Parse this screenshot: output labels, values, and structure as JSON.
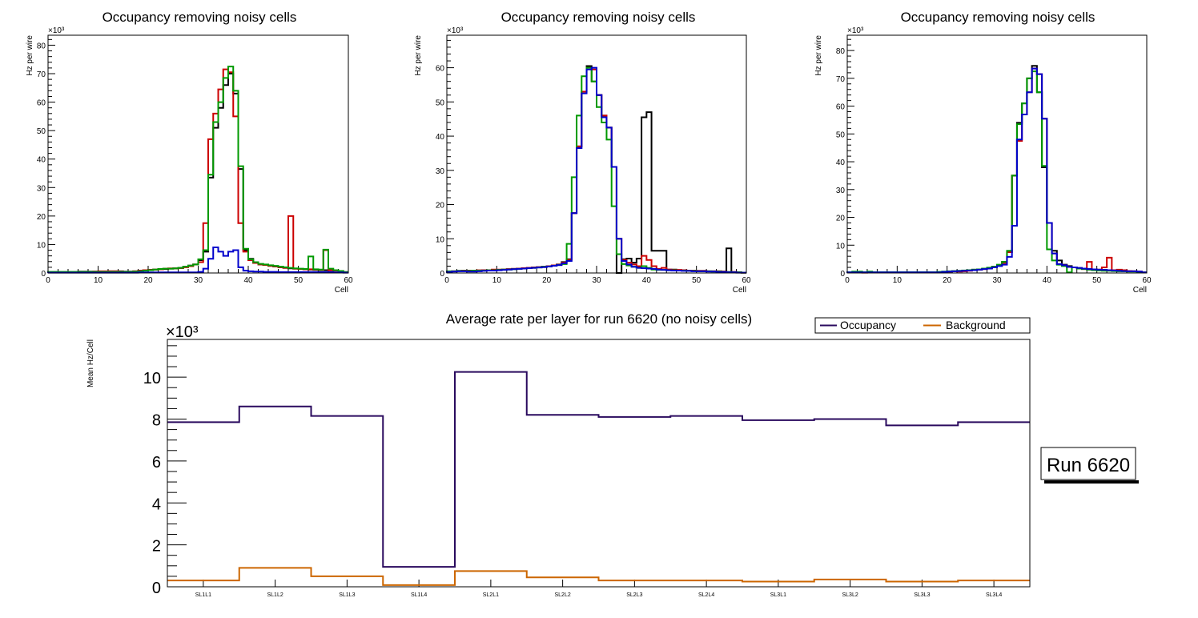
{
  "chart_data": [
    {
      "type": "histogram-step",
      "title": "Occupancy removing noisy cells",
      "xlabel": "Cell",
      "ylabel": "Hz per wire",
      "y_multiplier": "×10³",
      "xlim": [
        0,
        60
      ],
      "ylim": [
        0,
        83.5
      ],
      "x_ticks": [
        0,
        10,
        20,
        30,
        40,
        50,
        60
      ],
      "y_ticks": [
        0,
        10,
        20,
        30,
        40,
        50,
        60,
        70,
        80
      ],
      "bin_width": 1,
      "series": [
        {
          "name": "black",
          "color": "#000000",
          "values": [
            0.3,
            0.3,
            0.3,
            0.3,
            0.3,
            0.3,
            0.5,
            0.5,
            0.5,
            0.5,
            0.5,
            0.5,
            0.6,
            0.6,
            0.6,
            0.5,
            0.5,
            0.6,
            0.8,
            1.0,
            1.1,
            1.2,
            1.3,
            1.4,
            1.5,
            1.6,
            1.8,
            2.2,
            2.6,
            3.0,
            4.5,
            7.5,
            33.5,
            51,
            58,
            66,
            70,
            63,
            36.5,
            8,
            5,
            3.5,
            3.0,
            2.8,
            2.5,
            2.3,
            2.0,
            1.8,
            1.6,
            1.5,
            1.4,
            1.3,
            1.2,
            1.1,
            1.0,
            1.0,
            0.9,
            0.8,
            0.6,
            0.3
          ]
        },
        {
          "name": "red",
          "color": "#cc0000",
          "values": [
            0.3,
            0.3,
            0.3,
            0.3,
            0.3,
            0.3,
            0.4,
            0.4,
            0.4,
            0.5,
            0.6,
            0.6,
            0.6,
            0.6,
            0.5,
            0.4,
            0.4,
            0.6,
            0.8,
            1.0,
            1.1,
            1.2,
            1.3,
            1.5,
            1.6,
            1.6,
            1.7,
            2.0,
            2.4,
            3.0,
            3.8,
            17.5,
            47,
            56,
            64.5,
            71.5,
            70.5,
            55,
            17.5,
            7.5,
            4.5,
            3.5,
            3.0,
            2.8,
            2.5,
            2.3,
            2.0,
            1.8,
            20,
            1.5,
            1.4,
            1.3,
            1.3,
            1.2,
            1.1,
            8,
            1.0,
            0.8,
            0.5,
            0.3
          ]
        },
        {
          "name": "green",
          "color": "#009900",
          "values": [
            0.4,
            0.4,
            0.4,
            0.4,
            0.4,
            0.4,
            0.4,
            0.4,
            0.4,
            0.4,
            0.4,
            0.4,
            0.4,
            0.4,
            0.4,
            0.4,
            0.4,
            0.5,
            0.6,
            0.8,
            1.0,
            1.2,
            1.4,
            1.5,
            1.5,
            1.6,
            1.8,
            2.2,
            2.6,
            3.0,
            4.8,
            8.0,
            34.5,
            53,
            60,
            68.5,
            72.5,
            64,
            37.5,
            8.5,
            4.8,
            3.8,
            3.2,
            3.0,
            2.7,
            2.5,
            2.2,
            2.0,
            1.8,
            1.6,
            1.5,
            1.4,
            5.8,
            1.3,
            1.2,
            8.2,
            1.5,
            1.0,
            0.7,
            0.3
          ]
        },
        {
          "name": "blue",
          "color": "#0000cc",
          "values": [
            0.1,
            0.1,
            0.1,
            0.1,
            0.1,
            0.1,
            0.1,
            0.1,
            0.1,
            0.1,
            0.1,
            0.1,
            0.1,
            0.1,
            0.1,
            0.1,
            0.1,
            0.1,
            0.2,
            0.2,
            0.2,
            0.2,
            0.2,
            0.2,
            0.2,
            0.2,
            0.2,
            0.2,
            0.2,
            0.2,
            0.4,
            1.5,
            5.0,
            9.0,
            7.5,
            6.0,
            7.5,
            8.0,
            2.0,
            0.8,
            0.6,
            0.5,
            0.5,
            0.4,
            0.4,
            0.4,
            0.3,
            0.3,
            0.3,
            0.3,
            0.3,
            0.3,
            0.3,
            0.3,
            0.3,
            0.3,
            0.3,
            0.2,
            0.2,
            0.1
          ]
        }
      ]
    },
    {
      "type": "histogram-step",
      "title": "Occupancy removing noisy cells",
      "xlabel": "Cell",
      "ylabel": "Hz per wire",
      "y_multiplier": "×10³",
      "xlim": [
        0,
        60
      ],
      "ylim": [
        0,
        69.5
      ],
      "x_ticks": [
        0,
        10,
        20,
        30,
        40,
        50,
        60
      ],
      "y_ticks": [
        0,
        10,
        20,
        30,
        40,
        50,
        60
      ],
      "bin_width": 1,
      "series": [
        {
          "name": "black",
          "color": "#000000",
          "values": [
            0.3,
            0.5,
            0.6,
            0.7,
            0.7,
            0.7,
            0.7,
            0.8,
            0.8,
            0.9,
            0.9,
            1.0,
            1.1,
            1.2,
            1.3,
            1.4,
            1.5,
            1.6,
            1.7,
            1.8,
            2.0,
            2.2,
            2.5,
            3.2,
            4.0,
            17.5,
            37,
            53,
            60.5,
            56,
            52,
            46,
            42.5,
            31,
            0,
            4.0,
            4.2,
            3.0,
            4.2,
            45.5,
            47,
            6.5,
            6.5,
            6.5,
            1.0,
            1.0,
            0.8,
            0.8,
            0.7,
            0.7,
            0.6,
            0.6,
            0.5,
            0.5,
            0.5,
            0.4,
            7.2,
            0.3,
            0.2,
            0.1
          ]
        },
        {
          "name": "red",
          "color": "#cc0000",
          "values": [
            0.3,
            0.5,
            0.6,
            0.7,
            0.7,
            0.7,
            0.8,
            0.8,
            0.8,
            1.0,
            1.0,
            1.0,
            1.1,
            1.2,
            1.3,
            1.4,
            1.5,
            1.6,
            1.7,
            1.8,
            2.0,
            2.2,
            2.4,
            3.0,
            3.8,
            17.5,
            37,
            53,
            60,
            59.5,
            52,
            46,
            42.5,
            31,
            10,
            3.8,
            3.0,
            2.5,
            2.0,
            5.0,
            3.8,
            2.0,
            1.2,
            1.5,
            1.0,
            0.9,
            0.9,
            0.8,
            0.7,
            0.7,
            0.6,
            0.6,
            0.5,
            0.5,
            0.5,
            0.4,
            0.3,
            0.3,
            0.2,
            0.1
          ]
        },
        {
          "name": "green",
          "color": "#009900",
          "values": [
            0.5,
            0.5,
            0.6,
            0.6,
            0.6,
            0.7,
            0.7,
            0.7,
            0.8,
            0.8,
            0.9,
            1.0,
            1.0,
            1.1,
            1.2,
            1.3,
            1.4,
            1.5,
            1.6,
            1.8,
            1.9,
            2.1,
            2.3,
            2.6,
            8.5,
            28,
            46,
            57.5,
            60,
            56,
            48.5,
            44,
            39,
            19.5,
            5.5,
            2.6,
            2.2,
            1.8,
            1.5,
            2.0,
            1.5,
            1.0,
            0.9,
            0.9,
            0.8,
            0.8,
            0.7,
            0.7,
            0.6,
            0.6,
            0.5,
            0.5,
            0.5,
            0.4,
            0.4,
            0.3,
            0.3,
            0.2,
            0.2,
            0.1
          ]
        },
        {
          "name": "blue",
          "color": "#0000cc",
          "values": [
            0.3,
            0.4,
            0.5,
            0.5,
            0.4,
            0.4,
            0.5,
            0.6,
            0.7,
            0.7,
            0.8,
            0.9,
            1.0,
            1.1,
            1.2,
            1.3,
            1.4,
            1.5,
            1.6,
            1.7,
            1.9,
            2.1,
            2.3,
            2.8,
            3.5,
            17.5,
            36.5,
            52.5,
            59.5,
            60,
            52,
            45.5,
            42.5,
            31,
            10,
            3.5,
            2.5,
            1.8,
            1.5,
            1.4,
            1.3,
            1.2,
            1.0,
            0.9,
            0.8,
            0.7,
            0.7,
            0.6,
            0.6,
            0.5,
            0.5,
            0.5,
            0.4,
            0.4,
            0.3,
            0.3,
            0.2,
            0.2,
            0.1,
            0.1
          ]
        }
      ]
    },
    {
      "type": "histogram-step",
      "title": "Occupancy removing noisy cells",
      "xlabel": "Cell",
      "ylabel": "Hz per wire",
      "y_multiplier": "×10³",
      "xlim": [
        0,
        60
      ],
      "ylim": [
        0,
        85.5
      ],
      "x_ticks": [
        0,
        10,
        20,
        30,
        40,
        50,
        60
      ],
      "y_ticks": [
        0,
        10,
        20,
        30,
        40,
        50,
        60,
        70,
        80
      ],
      "bin_width": 1,
      "series": [
        {
          "name": "black",
          "color": "#000000",
          "values": [
            0.2,
            0.3,
            0.3,
            0.3,
            0.3,
            0.3,
            0.3,
            0.3,
            0.3,
            0.3,
            0.3,
            0.3,
            0.3,
            0.3,
            0.3,
            0.3,
            0.3,
            0.3,
            0.3,
            0.4,
            0.5,
            0.6,
            0.7,
            0.8,
            1.0,
            1.2,
            1.3,
            1.5,
            1.8,
            2.2,
            2.8,
            4.0,
            7.5,
            35,
            54,
            61,
            70,
            74.5,
            65,
            38,
            18,
            8,
            4.5,
            3,
            2.5,
            2,
            1.8,
            1.5,
            1.4,
            1.3,
            1.2,
            1.1,
            1,
            0.9,
            0.8,
            0.7,
            0.6,
            0.6,
            0.5,
            0.2
          ]
        },
        {
          "name": "red",
          "color": "#cc0000",
          "values": [
            0.2,
            0.2,
            0.3,
            0.1,
            0.3,
            0.3,
            0.3,
            0.3,
            0.3,
            0.3,
            0.3,
            0.3,
            0.3,
            0.3,
            0.3,
            0.3,
            0.3,
            0.3,
            0.3,
            0.4,
            0.5,
            0.6,
            0.5,
            0.6,
            0.8,
            1.0,
            1.2,
            1.4,
            1.7,
            2.0,
            2.6,
            3.6,
            7.5,
            35,
            47.5,
            57,
            65,
            73.5,
            71.5,
            55.5,
            18,
            7,
            3.2,
            2.8,
            2.2,
            2.0,
            1.6,
            1.4,
            4.0,
            1.3,
            1.2,
            2.0,
            5.5,
            1.0,
            1.2,
            1.0,
            0.7,
            0.6,
            0.5,
            0.2
          ]
        },
        {
          "name": "green",
          "color": "#009900",
          "values": [
            0.3,
            0.5,
            0.5,
            0.3,
            0.5,
            0.3,
            0.3,
            0.3,
            0.3,
            0.3,
            0.3,
            0.3,
            0.3,
            0.3,
            0.3,
            0.3,
            0.3,
            0.3,
            0.4,
            0.5,
            0.6,
            0.7,
            0.8,
            0.9,
            1.0,
            1.2,
            1.3,
            1.6,
            1.9,
            2.3,
            3.0,
            4.0,
            8.0,
            35,
            53.5,
            61,
            70,
            72.5,
            65,
            38.5,
            8.5,
            4.5,
            3.0,
            2.5,
            0.2,
            2.0,
            1.6,
            1.4,
            1.2,
            1.0,
            0.9,
            0.8,
            0.8,
            0.7,
            0.6,
            0.6,
            0.5,
            0.5,
            0.4,
            0.2
          ]
        },
        {
          "name": "blue",
          "color": "#0000cc",
          "values": [
            0.2,
            0.2,
            0.2,
            0.2,
            0.2,
            0.2,
            0.2,
            0.2,
            0.2,
            0.2,
            0.2,
            0.2,
            0.2,
            0.2,
            0.2,
            0.2,
            0.2,
            0.2,
            0.2,
            0.4,
            0.5,
            0.6,
            0.7,
            0.8,
            0.9,
            1.0,
            1.2,
            1.4,
            1.6,
            2.0,
            2.5,
            3.0,
            5.8,
            17,
            48,
            57,
            65,
            73.5,
            71.5,
            55.5,
            18,
            7,
            3.2,
            2.8,
            2.2,
            2.0,
            1.8,
            1.6,
            1.4,
            1.3,
            1.2,
            1.1,
            1.0,
            0.9,
            0.8,
            0.7,
            0.6,
            0.6,
            0.5,
            0.2
          ]
        }
      ]
    },
    {
      "type": "histogram-step",
      "title": "Average rate per layer for run 6620 (no noisy cells)",
      "xlabel": "",
      "ylabel": "Mean Hz/Cell",
      "y_multiplier": "×10³",
      "ylim": [
        0,
        11.8
      ],
      "y_ticks": [
        0,
        2,
        4,
        6,
        8,
        10
      ],
      "categories": [
        "SL1L1",
        "SL1L2",
        "SL1L3",
        "SL1L4",
        "SL2L1",
        "SL2L2",
        "SL2L3",
        "SL2L4",
        "SL3L1",
        "SL3L2",
        "SL3L3",
        "SL3L4"
      ],
      "legend": {
        "placement": "top-right"
      },
      "series": [
        {
          "name": "Occupancy",
          "color": "#2a0a5e",
          "values": [
            7.85,
            8.6,
            8.15,
            0.95,
            10.25,
            8.2,
            8.1,
            8.15,
            7.95,
            8.0,
            7.7,
            7.85
          ]
        },
        {
          "name": "Background",
          "color": "#cc6600",
          "values": [
            0.3,
            0.9,
            0.5,
            0.08,
            0.75,
            0.45,
            0.3,
            0.3,
            0.25,
            0.35,
            0.25,
            0.3
          ]
        }
      ]
    }
  ],
  "run_label": "Run 6620"
}
